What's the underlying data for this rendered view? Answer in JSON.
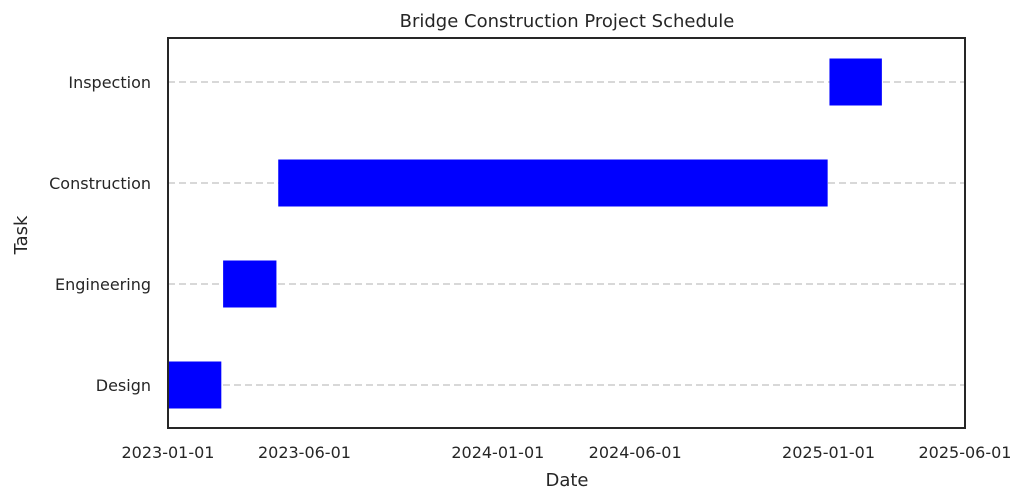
{
  "chart_data": {
    "type": "bar",
    "orientation": "horizontal",
    "title": "Bridge Construction Project Schedule",
    "xlabel": "Date",
    "ylabel": "Task",
    "xlim": [
      "2023-01-01",
      "2025-06-01"
    ],
    "x_ticks": [
      "2023-01-01",
      "2023-06-01",
      "2024-01-01",
      "2024-06-01",
      "2025-01-01",
      "2025-06-01"
    ],
    "categories": [
      "Design",
      "Engineering",
      "Construction",
      "Inspection"
    ],
    "tasks": [
      {
        "task": "Design",
        "start": "2023-01-01",
        "end": "2023-03-01"
      },
      {
        "task": "Engineering",
        "start": "2023-03-03",
        "end": "2023-05-01"
      },
      {
        "task": "Construction",
        "start": "2023-05-03",
        "end": "2024-12-31"
      },
      {
        "task": "Inspection",
        "start": "2025-01-02",
        "end": "2025-03-01"
      }
    ],
    "bar_color": "#0000ff",
    "grid": "horizontal dashed",
    "grid_color": "#cccccc",
    "frame_color": "#262626"
  }
}
